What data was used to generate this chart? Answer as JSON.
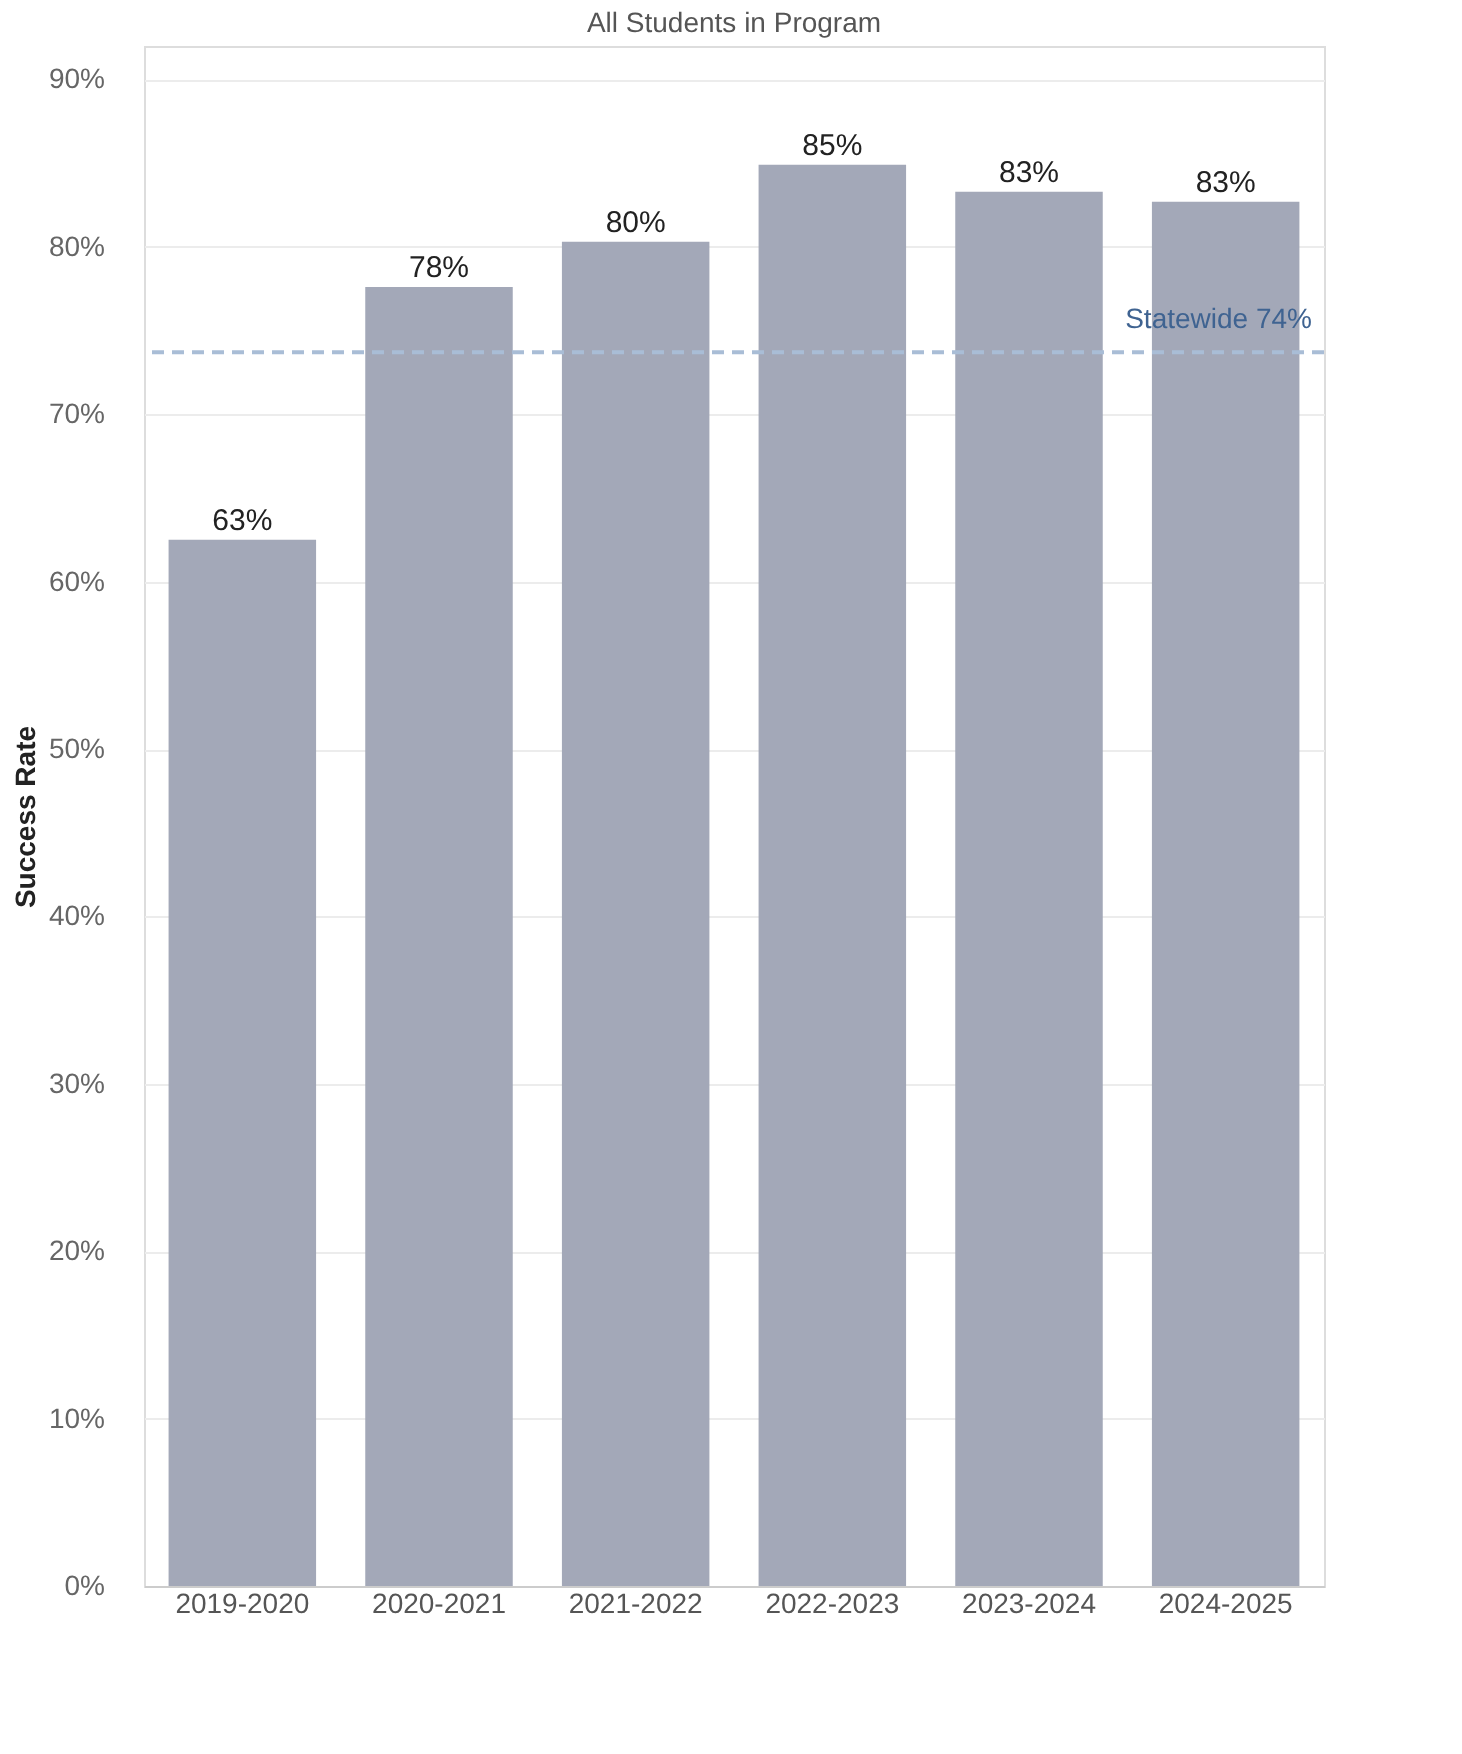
{
  "chart_data": {
    "type": "bar",
    "title": "All Students in Program",
    "ylabel": "Success Rate",
    "categories": [
      "2019-2020",
      "2020-2021",
      "2021-2022",
      "2022-2023",
      "2023-2024",
      "2024-2025"
    ],
    "values": [
      62.5,
      77.6,
      80.3,
      84.9,
      83.3,
      82.7
    ],
    "color": "#a3a8b8",
    "value_labels": [
      "63%",
      "78%",
      "80%",
      "85%",
      "83%",
      "83%"
    ],
    "ylim": [
      0,
      92
    ],
    "yticks": [
      {
        "value": 0,
        "label": "0%"
      },
      {
        "value": 10,
        "label": "10%"
      },
      {
        "value": 20,
        "label": "20%"
      },
      {
        "value": 30,
        "label": "30%"
      },
      {
        "value": 40,
        "label": "40%"
      },
      {
        "value": 50,
        "label": "50%"
      },
      {
        "value": 60,
        "label": "60%"
      },
      {
        "value": 70,
        "label": "70%"
      },
      {
        "value": 80,
        "label": "80%"
      },
      {
        "value": 90,
        "label": "90%"
      }
    ],
    "ref_lines": [
      {
        "axis": "y",
        "value": 73.7,
        "label": "Statewide 74%",
        "color": "#a9bdd6",
        "line_style": "dashed"
      }
    ],
    "grid": "y"
  }
}
